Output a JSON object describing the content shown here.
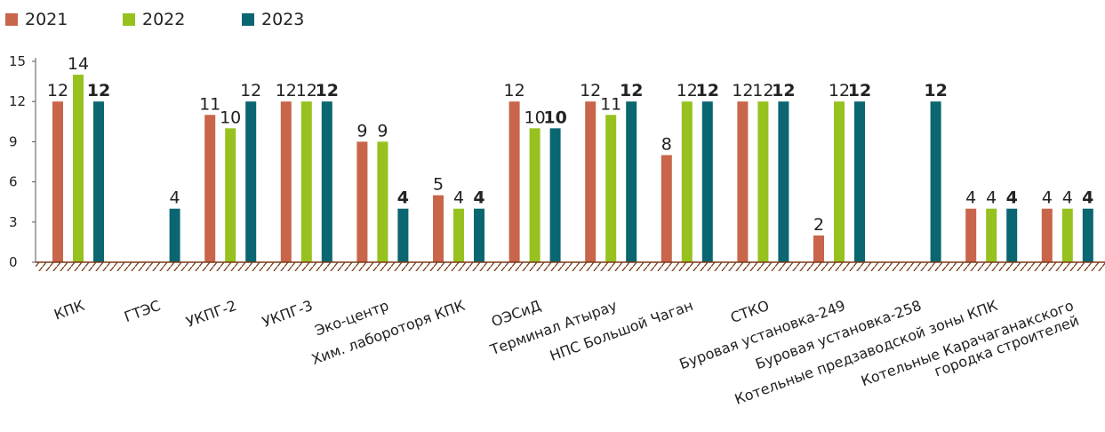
{
  "chart_data": {
    "type": "bar",
    "categories": [
      [
        "КПК"
      ],
      [
        "ГТЭС"
      ],
      [
        "УКПГ-2"
      ],
      [
        "УКПГ-3"
      ],
      [
        "Эко-центр"
      ],
      [
        "Хим. лабороторя КПК"
      ],
      [
        "ОЭСиД"
      ],
      [
        "Терминал Атырау"
      ],
      [
        "НПС Большой Чаган"
      ],
      [
        "СТКО"
      ],
      [
        "Буровая установка-249"
      ],
      [
        "Буровая установка-258"
      ],
      [
        "Котельные предзаводской зоны КПК"
      ],
      [
        "Котельные Карачаганакского",
        "городка строителей"
      ]
    ],
    "series": [
      {
        "name": "2021",
        "color": "#c8654a",
        "values": [
          12,
          null,
          11,
          12,
          9,
          5,
          12,
          12,
          8,
          12,
          2,
          null,
          4,
          4
        ]
      },
      {
        "name": "2022",
        "color": "#97c11f",
        "values": [
          14,
          null,
          10,
          12,
          9,
          4,
          10,
          11,
          12,
          12,
          12,
          null,
          4,
          4
        ]
      },
      {
        "name": "2023",
        "color": "#0a6670",
        "values": [
          12,
          4,
          12,
          12,
          4,
          4,
          10,
          12,
          12,
          12,
          12,
          12,
          4,
          4
        ]
      }
    ],
    "y_ticks": [
      "0",
      "3",
      "6",
      "9",
      "12",
      "15"
    ],
    "ylim": [
      0,
      15
    ],
    "bold_labels_series": "2023",
    "bold_exceptions": [
      {
        "category": 1,
        "series": "2023"
      },
      {
        "category": 2,
        "series": "2023"
      }
    ],
    "legend": "top-left",
    "grid": false
  }
}
